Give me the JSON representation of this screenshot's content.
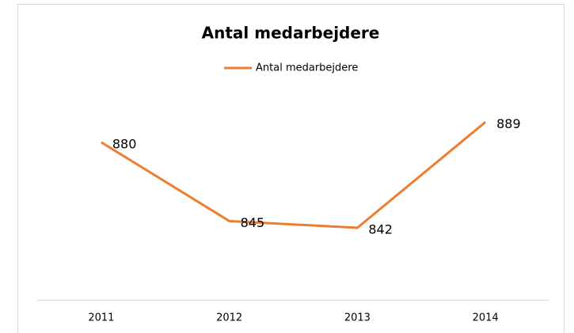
{
  "chart_data": {
    "type": "line",
    "title": "Antal medarbejdere",
    "categories": [
      "2011",
      "2012",
      "2013",
      "2014"
    ],
    "series": [
      {
        "name": "Antal medarbejdere",
        "color": "#ed7d31",
        "values": [
          880,
          845,
          842,
          889
        ]
      }
    ],
    "ylim": [
      810,
      900
    ],
    "legend": "top",
    "grid": false,
    "data_labels": true
  }
}
